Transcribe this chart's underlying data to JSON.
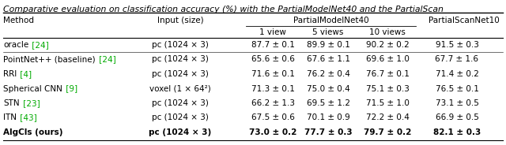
{
  "title": "Comparative evaluation on classification accuracy (%) with the PartialModelNet40 and the PartialScan",
  "rows": [
    {
      "method": "oracle",
      "ref": "[24]",
      "input": "pc (1024 × 3)",
      "v1": "87.7 ± 0.1",
      "v5": "89.9 ± 0.1",
      "v10": "90.2 ± 0.2",
      "psn": "91.5 ± 0.3",
      "bold": false,
      "sep_above": true
    },
    {
      "method": "PointNet++ (baseline)",
      "ref": "[24]",
      "input": "pc (1024 × 3)",
      "v1": "65.6 ± 0.6",
      "v5": "67.6 ± 1.1",
      "v10": "69.6 ± 1.0",
      "psn": "67.7 ± 1.6",
      "bold": false,
      "sep_above": true
    },
    {
      "method": "RRI",
      "ref": "[4]",
      "input": "pc (1024 × 3)",
      "v1": "71.6 ± 0.1",
      "v5": "76.2 ± 0.4",
      "v10": "76.7 ± 0.1",
      "psn": "71.4 ± 0.2",
      "bold": false,
      "sep_above": false
    },
    {
      "method": "Spherical CNN",
      "ref": "[9]",
      "input": "voxel (1 × 64²)",
      "v1": "71.3 ± 0.1",
      "v5": "75.0 ± 0.4",
      "v10": "75.1 ± 0.3",
      "psn": "76.5 ± 0.1",
      "bold": false,
      "sep_above": false
    },
    {
      "method": "STN",
      "ref": "[23]",
      "input": "pc (1024 × 3)",
      "v1": "66.2 ± 1.3",
      "v5": "69.5 ± 1.2",
      "v10": "71.5 ± 1.0",
      "psn": "73.1 ± 0.5",
      "bold": false,
      "sep_above": false
    },
    {
      "method": "ITN",
      "ref": "[43]",
      "input": "pc (1024 × 3)",
      "v1": "67.5 ± 0.6",
      "v5": "70.1 ± 0.9",
      "v10": "72.2 ± 0.4",
      "psn": "66.9 ± 0.5",
      "bold": false,
      "sep_above": false
    },
    {
      "method": "AlgCls (ours)",
      "ref": "",
      "input": "pc (1024 × 3)",
      "v1": "73.0 ± 0.2",
      "v5": "77.7 ± 0.3",
      "v10": "79.7 ± 0.2",
      "psn": "82.1 ± 0.3",
      "bold": true,
      "sep_above": false
    }
  ],
  "green": "#00aa00",
  "fs": 7.5,
  "fs_title": 7.8
}
